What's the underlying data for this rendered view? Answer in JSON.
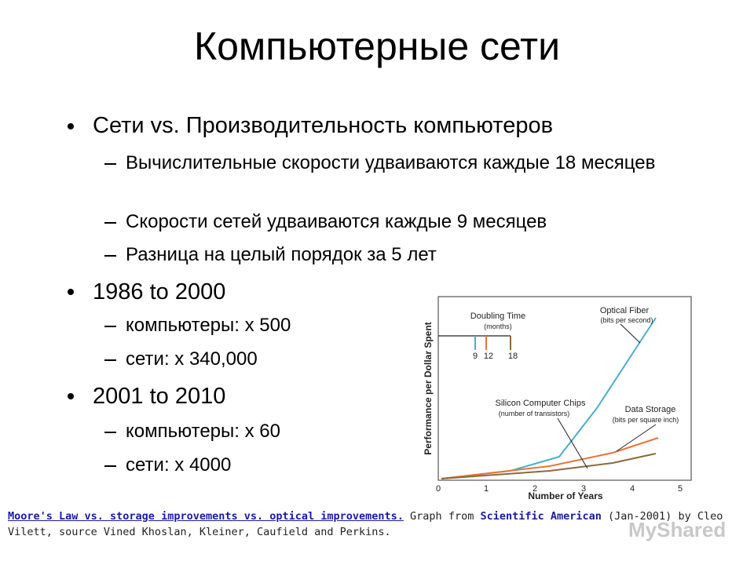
{
  "title": "Компьютерные сети",
  "bullets": [
    {
      "text": "Сети vs. Производительность компьютеров",
      "items": [
        "Вычислительные скорости удваиваются каждые 18 месяцев",
        "Скорости сетей удваиваются каждые 9 месяцев",
        "Разница  на целый порядок за 5 лет"
      ]
    },
    {
      "text": "1986 to 2000",
      "items": [
        "компьютеры: x 500",
        "сети: x 340,000"
      ]
    },
    {
      "text": "2001 to 2010",
      "items": [
        "компьютеры: x 60",
        "сети: x 4000"
      ]
    }
  ],
  "figure": {
    "y_label": "Performance per Dollar Spent",
    "x_label": "Number of Years",
    "x_ticks": [
      "0",
      "1",
      "2",
      "3",
      "4",
      "5"
    ],
    "doubling_title": "Doubling Time",
    "doubling_unit": "(months)",
    "doubling_values": [
      "9",
      "12",
      "18"
    ],
    "optical_label": "Optical Fiber",
    "optical_unit": "(bits per second)",
    "silicon_label": "Silicon Computer Chips",
    "silicon_unit": "(number of transistors)",
    "storage_label": "Data Storage",
    "storage_unit": "(bits per square inch)"
  },
  "caption": {
    "link": "Moore's Law vs. storage improvements vs. optical improvements.",
    "text1": " Graph from ",
    "source": "Scientific American",
    "text2": " (Jan-2001) by Cleo Vilett, source Vined Khoslan, Kleiner, Caufield and Perkins."
  },
  "watermark": "MyShared"
}
